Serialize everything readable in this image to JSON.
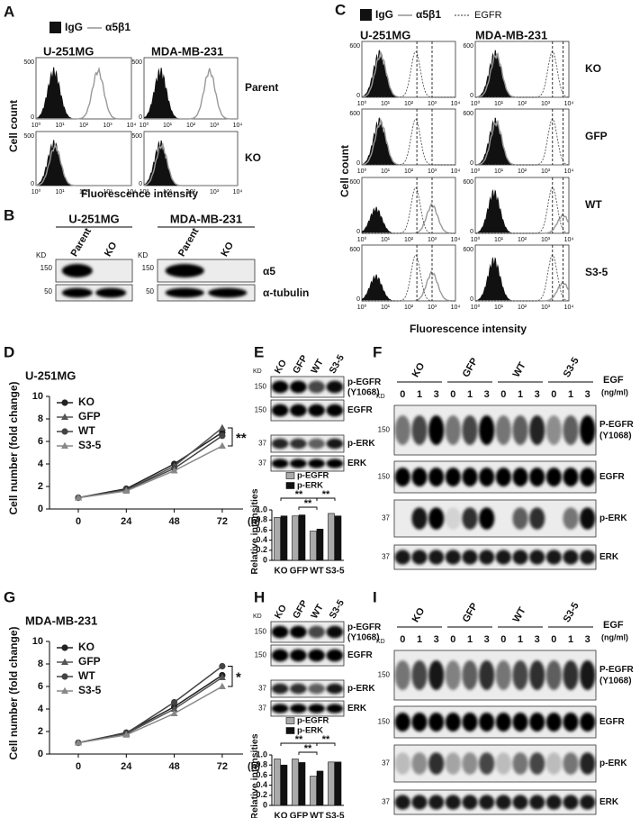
{
  "panel_a": {
    "label": "A",
    "legend": [
      "IgG",
      "α5β1"
    ],
    "columns": [
      "U-251MG",
      "MDA-MB-231"
    ],
    "rows": [
      "Parent",
      "KO"
    ],
    "yticks": [
      0,
      500
    ],
    "xticks": [
      "10⁰",
      "10¹",
      "10²",
      "10³",
      "10⁴"
    ],
    "y_axis_label": "Cell count",
    "x_axis_label": "Fluorescence intensity"
  },
  "panel_b": {
    "label": "B",
    "columns": [
      "U-251MG",
      "MDA-MB-231"
    ],
    "lanes": [
      "Parent",
      "KO"
    ],
    "kd": "KD",
    "markers": [
      "150",
      "50"
    ],
    "proteins": [
      "α5",
      "α-tubulin"
    ]
  },
  "panel_c": {
    "label": "C",
    "legend": [
      "IgG",
      "α5β1",
      "EGFR"
    ],
    "columns": [
      "U-251MG",
      "MDA-MB-231"
    ],
    "rows": [
      "KO",
      "GFP",
      "WT",
      "S3-5"
    ],
    "yticks": [
      0,
      600
    ],
    "xticks": [
      "10⁰",
      "10¹",
      "10²",
      "10³",
      "10⁴"
    ],
    "y_axis_label": "Cell count",
    "x_axis_label": "Fluorescence intensity"
  },
  "blot_e": {
    "lanes": [
      "KO",
      "GFP",
      "WT",
      "S3-5"
    ],
    "kd": "KD",
    "markers": [
      "150",
      "150",
      "37",
      "37"
    ],
    "proteins": [
      "p-EGFR",
      "EGFR",
      "p-ERK",
      "ERK"
    ],
    "site": "(Y1068)"
  },
  "blot_f": {
    "label": "F",
    "groups": [
      "KO",
      "GFP",
      "WT",
      "S3-5"
    ],
    "doses": [
      "0",
      "1",
      "3"
    ],
    "treatment": "EGF",
    "treatment_unit": "(ng/ml)",
    "kd": "KD",
    "markers": [
      "150",
      "150",
      "37",
      "37"
    ],
    "proteins": [
      "P-EGFR",
      "EGFR",
      "p-ERK",
      "ERK"
    ],
    "site": "(Y1068)"
  },
  "blot_h": {
    "lanes": [
      "KO",
      "GFP",
      "WT",
      "S3-5"
    ],
    "kd": "KD",
    "markers": [
      "150",
      "150",
      "37",
      "37"
    ],
    "proteins": [
      "p-EGFR",
      "EGFR",
      "p-ERK",
      "ERK"
    ],
    "site": "(Y1068)"
  },
  "blot_i": {
    "label": "I",
    "groups": [
      "KO",
      "GFP",
      "WT",
      "S3-5"
    ],
    "doses": [
      "0",
      "1",
      "3"
    ],
    "treatment": "EGF",
    "treatment_unit": "(ng/ml)",
    "kd": "KD",
    "markers": [
      "150",
      "150",
      "37",
      "37"
    ],
    "proteins": [
      "P-EGFR",
      "EGFR",
      "p-ERK",
      "ERK"
    ],
    "site": "(Y1068)"
  },
  "chart_data": [
    {
      "type": "line",
      "panel_label": "D",
      "title": "U-251MG",
      "categories": [
        "0",
        "24",
        "48",
        "72"
      ],
      "x_unit_label": "(h)",
      "y_axis_label": "Cell number (fold change)",
      "ylim": [
        0,
        10
      ],
      "yticks": [
        0,
        2,
        4,
        6,
        8,
        10
      ],
      "series": [
        {
          "name": "KO",
          "color": "#222222",
          "marker": "circle",
          "values": [
            1,
            1.8,
            4,
            6.8
          ]
        },
        {
          "name": "GFP",
          "color": "#555555",
          "marker": "triangle",
          "values": [
            1,
            1.7,
            3.8,
            7.2
          ]
        },
        {
          "name": "WT",
          "color": "#444444",
          "marker": "circle",
          "values": [
            1,
            1.7,
            3.6,
            6.5
          ]
        },
        {
          "name": "S3-5",
          "color": "#888888",
          "marker": "triangle",
          "values": [
            1,
            1.6,
            3.4,
            5.6
          ]
        }
      ],
      "annotations": [
        "**"
      ]
    },
    {
      "type": "bar",
      "panel_label": "E",
      "categories": [
        "KO",
        "GFP",
        "WT",
        "S3-5"
      ],
      "y_axis_label": "Relative intensities",
      "ylim": [
        0,
        1
      ],
      "yticks": [
        0,
        0.2,
        0.4,
        0.6,
        0.8,
        {
          "value": 1,
          "label": "1.0"
        }
      ],
      "series": [
        {
          "name": "p-EGFR",
          "color": "#aaaaaa",
          "values": [
            0.85,
            0.88,
            0.58,
            0.93
          ]
        },
        {
          "name": "p-ERK",
          "color": "#111111",
          "values": [
            0.88,
            0.9,
            0.62,
            0.88
          ]
        }
      ],
      "annotations": [
        "**",
        "**",
        "**"
      ]
    },
    {
      "type": "line",
      "panel_label": "G",
      "title": "MDA-MB-231",
      "categories": [
        "0",
        "24",
        "48",
        "72"
      ],
      "x_unit_label": "(h)",
      "y_axis_label": "Cell number (fold change)",
      "ylim": [
        0,
        10
      ],
      "yticks": [
        0,
        2,
        4,
        6,
        8,
        10
      ],
      "series": [
        {
          "name": "KO",
          "color": "#222222",
          "marker": "circle",
          "values": [
            1,
            1.9,
            4.2,
            7
          ]
        },
        {
          "name": "GFP",
          "color": "#555555",
          "marker": "triangle",
          "values": [
            1,
            1.8,
            4,
            6.8
          ]
        },
        {
          "name": "WT",
          "color": "#444444",
          "marker": "circle",
          "values": [
            1,
            1.85,
            4.6,
            7.8
          ]
        },
        {
          "name": "S3-5",
          "color": "#888888",
          "marker": "triangle",
          "values": [
            1,
            1.7,
            3.6,
            6
          ]
        }
      ],
      "annotations": [
        "*"
      ]
    },
    {
      "type": "bar",
      "panel_label": "H",
      "categories": [
        "KO",
        "GFP",
        "WT",
        "S3-5"
      ],
      "y_axis_label": "Relative intensities",
      "ylim": [
        0,
        1
      ],
      "yticks": [
        0,
        0.2,
        0.4,
        0.6,
        0.8,
        {
          "value": 1,
          "label": "1.0"
        }
      ],
      "series": [
        {
          "name": "p-EGFR",
          "color": "#aaaaaa",
          "values": [
            0.92,
            0.92,
            0.58,
            0.86
          ]
        },
        {
          "name": "p-ERK",
          "color": "#111111",
          "values": [
            0.8,
            0.85,
            0.68,
            0.86
          ]
        }
      ],
      "annotations": [
        "**",
        "**",
        "**"
      ]
    }
  ]
}
